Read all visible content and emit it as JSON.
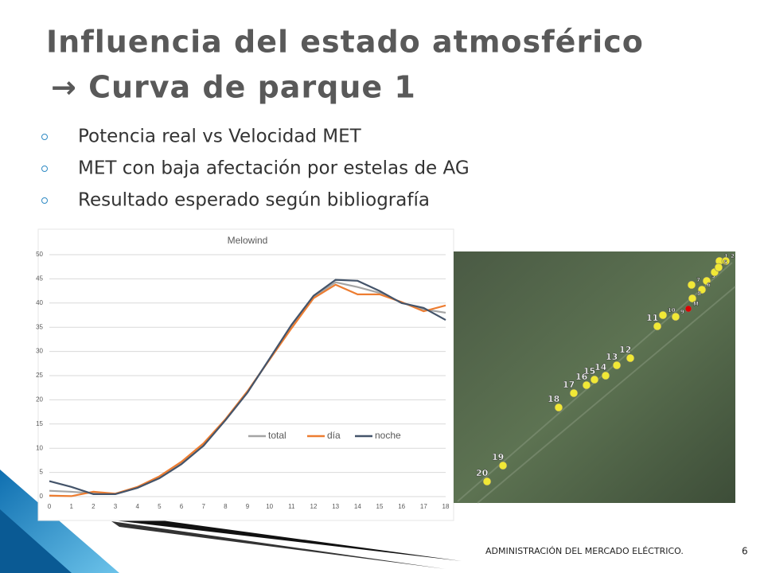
{
  "slide": {
    "title_lines": [
      "Influencia del estado atmosférico",
      "→ Curva de parque 1"
    ],
    "bullets": [
      "Potencia real vs Velocidad MET",
      "MET con baja afectación por estelas de AG",
      "Resultado esperado según bibliografía"
    ],
    "footer": "ADMINISTRACIÓN DEL MERCADO ELÉCTRICO.",
    "page_number": "6"
  },
  "chart_data": {
    "type": "line",
    "title": "Melowind",
    "x": [
      0,
      1,
      2,
      3,
      4,
      5,
      6,
      7,
      8,
      9,
      10,
      11,
      12,
      13,
      14,
      15,
      16,
      17,
      18
    ],
    "xlim": [
      0,
      18
    ],
    "xticks": [
      0,
      1,
      2,
      3,
      4,
      5,
      6,
      7,
      8,
      9,
      10,
      11,
      12,
      13,
      14,
      15,
      16,
      17,
      18
    ],
    "ylim": [
      0,
      50
    ],
    "yticks": [
      0,
      5,
      10,
      15,
      20,
      25,
      30,
      35,
      40,
      45,
      50
    ],
    "grid": true,
    "series": [
      {
        "name": "total",
        "color": "#a5a5a5",
        "values": [
          1.2,
          1.0,
          0.7,
          0.6,
          1.9,
          4.0,
          7.0,
          10.8,
          15.9,
          21.6,
          28.4,
          35.1,
          41.3,
          44.3,
          43.3,
          42.1,
          40.1,
          38.7,
          38.0
        ]
      },
      {
        "name": "día",
        "color": "#ed7d31",
        "values": [
          0.2,
          0.1,
          1.0,
          0.6,
          2.0,
          4.2,
          7.2,
          11.0,
          16.0,
          21.8,
          28.3,
          34.8,
          41.0,
          43.8,
          41.8,
          41.8,
          40.2,
          38.3,
          39.5
        ]
      },
      {
        "name": "noche",
        "color": "#44546a",
        "values": [
          3.2,
          2.0,
          0.5,
          0.5,
          1.8,
          3.8,
          6.7,
          10.5,
          15.8,
          21.5,
          28.5,
          35.5,
          41.5,
          44.8,
          44.6,
          42.5,
          40.0,
          39.0,
          36.5
        ]
      }
    ]
  },
  "map": {
    "pins": [
      "1",
      "2",
      "3",
      "4",
      "5",
      "6",
      "7",
      "8",
      "M",
      "9",
      "10",
      "11",
      "12",
      "13",
      "14",
      "15",
      "16",
      "17",
      "18",
      "19",
      "20"
    ]
  }
}
